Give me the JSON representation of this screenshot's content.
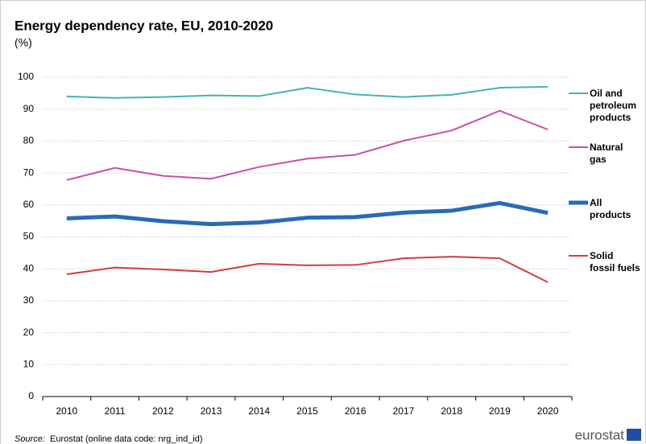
{
  "chart_data": {
    "type": "line",
    "title": "Energy dependency rate, EU, 2010-2020",
    "subtitle": "(%)",
    "categories": [
      "2010",
      "2011",
      "2012",
      "2013",
      "2014",
      "2015",
      "2016",
      "2017",
      "2018",
      "2019",
      "2020"
    ],
    "series": [
      {
        "name": "Oil and petroleum products",
        "color": "#3eb6ac",
        "width": 2,
        "values": [
          94,
          93.5,
          93.8,
          94.3,
          94.1,
          96.7,
          94.6,
          93.8,
          94.5,
          96.7,
          97
        ]
      },
      {
        "name": "Natural gas",
        "color": "#c94fa8",
        "width": 2,
        "values": [
          67.8,
          71.6,
          69.1,
          68.2,
          71.9,
          74.5,
          75.7,
          80.1,
          83.3,
          89.5,
          83.6
        ]
      },
      {
        "name": "All products",
        "color": "#2a6ab5",
        "width": 5,
        "values": [
          55.8,
          56.4,
          54.9,
          54.0,
          54.5,
          56.0,
          56.2,
          57.6,
          58.2,
          60.6,
          57.5
        ]
      },
      {
        "name": "Solid fossil fuels",
        "color": "#d63a3e",
        "width": 2,
        "values": [
          38.3,
          40.4,
          39.8,
          39.0,
          41.6,
          41.1,
          41.2,
          43.3,
          43.8,
          43.3,
          35.8
        ]
      }
    ],
    "ylim": [
      0,
      100
    ],
    "yticks": [
      0,
      10,
      20,
      30,
      40,
      50,
      60,
      70,
      80,
      90,
      100
    ],
    "grid": true,
    "legend": "right",
    "source_label": "Source:",
    "source": "Eurostat (online data code: nrg_ind_id)",
    "logo": "eurostat"
  }
}
